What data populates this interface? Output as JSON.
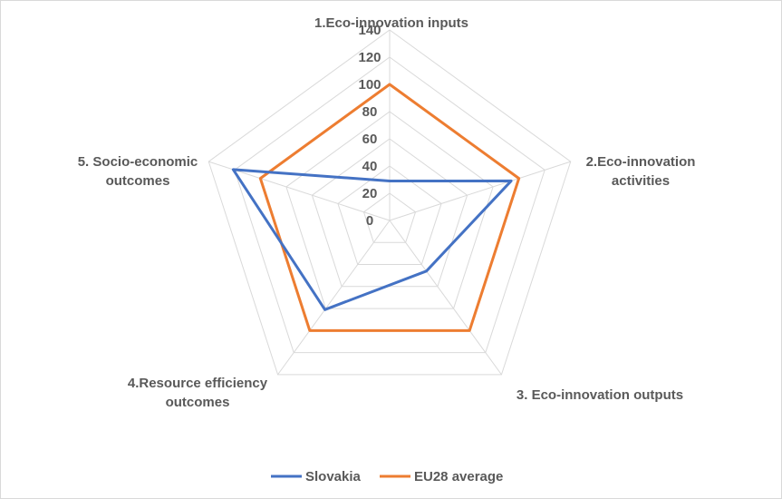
{
  "chart_data": {
    "type": "radar",
    "categories": [
      [
        "1.Eco-innovation inputs"
      ],
      [
        "2.Eco-innovation",
        "activities"
      ],
      [
        "3. Eco-innovation outputs"
      ],
      [
        "4.Resource efficiency",
        "outcomes"
      ],
      [
        "5. Socio-economic",
        "outcomes"
      ]
    ],
    "rlim": [
      0,
      140
    ],
    "ticks": [
      "0",
      "20",
      "40",
      "60",
      "80",
      "100",
      "120",
      "140"
    ],
    "tick_values": [
      0,
      20,
      40,
      60,
      80,
      100,
      120,
      140
    ],
    "series": [
      {
        "name": "Slovakia",
        "color": "#4472c4",
        "values": [
          29,
          94,
          46,
          81,
          121
        ]
      },
      {
        "name": "EU28 average",
        "color": "#ed7d31",
        "values": [
          100,
          100,
          100,
          100,
          100
        ]
      }
    ],
    "gridline_color": "#d9d9d9",
    "legend_position": "bottom"
  }
}
